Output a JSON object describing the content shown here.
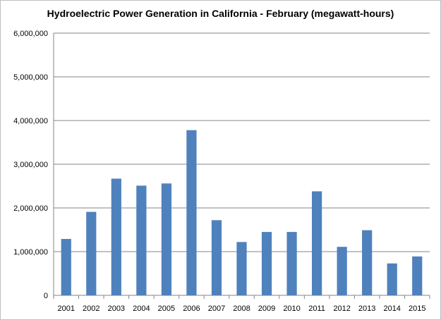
{
  "chart_data": {
    "type": "bar",
    "title": "Hydroelectric Power Generation in California - February (megawatt-hours)",
    "xlabel": "",
    "ylabel": "",
    "categories": [
      "2001",
      "2002",
      "2003",
      "2004",
      "2005",
      "2006",
      "2007",
      "2008",
      "2009",
      "2010",
      "2011",
      "2012",
      "2013",
      "2014",
      "2015"
    ],
    "values": [
      1290000,
      1910000,
      2670000,
      2510000,
      2560000,
      3780000,
      1720000,
      1220000,
      1450000,
      1450000,
      2380000,
      1110000,
      1490000,
      730000,
      890000
    ],
    "ylim": [
      0,
      6000000
    ],
    "yticks": [
      0,
      1000000,
      2000000,
      3000000,
      4000000,
      5000000,
      6000000
    ],
    "ytick_labels": [
      "0",
      "1,000,000",
      "2,000,000",
      "3,000,000",
      "4,000,000",
      "5,000,000",
      "6,000,000"
    ],
    "grid": "horizontal",
    "legend": "none",
    "bar_color": "#4f81bd",
    "grid_color": "#868686"
  }
}
